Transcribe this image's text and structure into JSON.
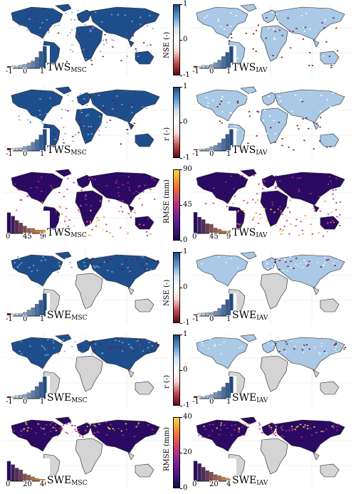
{
  "panels": [
    {
      "left_label": "TWS",
      "left_sub": "MSC",
      "right_label": "TWS",
      "right_sub": "IAV",
      "colorbar_title": "NSE (-)",
      "ticks": [
        "1",
        "0",
        "-1"
      ],
      "hist_ticks": [
        "-1",
        "0",
        "1"
      ]
    },
    {
      "left_label": "TWS",
      "left_sub": "MSC",
      "right_label": "TWS",
      "right_sub": "IAV",
      "colorbar_title": "r (-)",
      "ticks": [
        "1",
        "0",
        "-1"
      ],
      "hist_ticks": [
        "-1",
        "0",
        "1"
      ]
    },
    {
      "left_label": "TWS",
      "left_sub": "MSC",
      "right_label": "TWS",
      "right_sub": "IAV",
      "colorbar_title": "RMSE (mm)",
      "ticks": [
        "90",
        "45",
        "0"
      ],
      "hist_ticks": [
        "0",
        "45",
        "90"
      ]
    },
    {
      "left_label": "SWE",
      "left_sub": "MSC",
      "right_label": "SWE",
      "right_sub": "IAV",
      "colorbar_title": "NSE (-)",
      "ticks": [
        "1",
        "0",
        "-1"
      ],
      "hist_ticks": [
        "-1",
        "0",
        "1"
      ]
    },
    {
      "left_label": "SWE",
      "left_sub": "MSC",
      "right_label": "SWE",
      "right_sub": "IAV",
      "colorbar_title": "r (-)",
      "ticks": [
        "1",
        "0",
        "-1"
      ],
      "hist_ticks": [
        "-1",
        "0",
        "1"
      ]
    },
    {
      "left_label": "SWE",
      "left_sub": "MSC",
      "right_label": "SWE",
      "right_sub": "IAV",
      "colorbar_title": "RMSE (mm)",
      "ticks": [
        "40",
        "20",
        "0"
      ],
      "hist_ticks": [
        "0",
        "20",
        "40"
      ]
    }
  ],
  "colors": {
    "land": "#d4d4d4",
    "blue_dark": "#1f4e8c",
    "blue_light": "#a9c9e6",
    "red_dark": "#7a1020",
    "purple_dark": "#2a0a63",
    "magenta": "#b1308a",
    "yellow": "#f5d63b"
  }
}
